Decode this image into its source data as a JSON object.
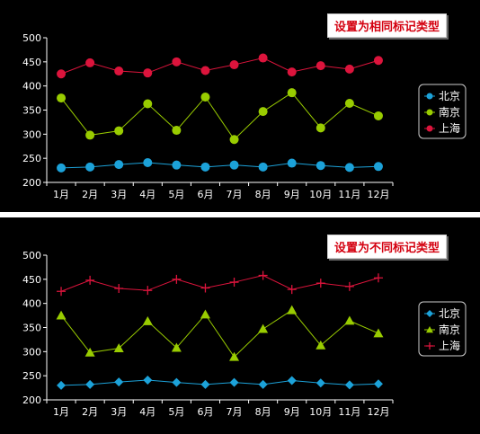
{
  "chart_data": [
    {
      "type": "line",
      "title": "设置为相同标记类型",
      "categories": [
        "1月",
        "2月",
        "3月",
        "4月",
        "5月",
        "6月",
        "7月",
        "8月",
        "9月",
        "10月",
        "11月",
        "12月"
      ],
      "ylim": [
        200,
        500
      ],
      "yticks": [
        200,
        250,
        300,
        350,
        400,
        450,
        500
      ],
      "legend_position": "right",
      "series": [
        {
          "name": "北京",
          "marker": "circle",
          "color": "#1ca2d9",
          "values": [
            230,
            232,
            237,
            241,
            236,
            232,
            236,
            232,
            240,
            235,
            231,
            233
          ]
        },
        {
          "name": "南京",
          "marker": "circle",
          "color": "#99cc00",
          "values": [
            375,
            298,
            307,
            363,
            308,
            377,
            289,
            347,
            386,
            313,
            364,
            338
          ]
        },
        {
          "name": "上海",
          "marker": "circle",
          "color": "#dc143c",
          "values": [
            425,
            448,
            431,
            427,
            450,
            432,
            444,
            458,
            429,
            442,
            435,
            453
          ]
        }
      ]
    },
    {
      "type": "line",
      "title": "设置为不同标记类型",
      "categories": [
        "1月",
        "2月",
        "3月",
        "4月",
        "5月",
        "6月",
        "7月",
        "8月",
        "9月",
        "10月",
        "11月",
        "12月"
      ],
      "ylim": [
        200,
        500
      ],
      "yticks": [
        200,
        250,
        300,
        350,
        400,
        450,
        500
      ],
      "legend_position": "right",
      "series": [
        {
          "name": "北京",
          "marker": "diamond",
          "color": "#1ca2d9",
          "values": [
            230,
            232,
            237,
            241,
            236,
            232,
            236,
            232,
            240,
            235,
            231,
            233
          ]
        },
        {
          "name": "南京",
          "marker": "triangle",
          "color": "#99cc00",
          "values": [
            375,
            298,
            307,
            363,
            308,
            377,
            289,
            347,
            386,
            313,
            364,
            338
          ]
        },
        {
          "name": "上海",
          "marker": "plus",
          "color": "#dc143c",
          "values": [
            425,
            448,
            431,
            427,
            450,
            432,
            444,
            458,
            429,
            442,
            435,
            453
          ]
        }
      ]
    }
  ]
}
